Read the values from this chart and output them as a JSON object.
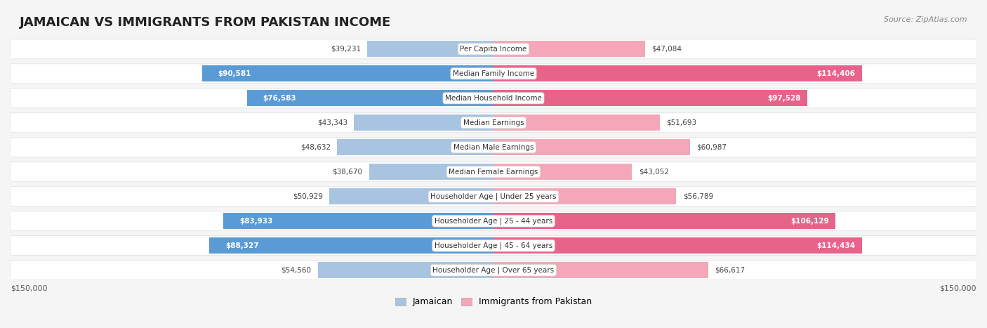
{
  "title": "JAMAICAN VS IMMIGRANTS FROM PAKISTAN INCOME",
  "source": "Source: ZipAtlas.com",
  "categories": [
    "Per Capita Income",
    "Median Family Income",
    "Median Household Income",
    "Median Earnings",
    "Median Male Earnings",
    "Median Female Earnings",
    "Householder Age | Under 25 years",
    "Householder Age | 25 - 44 years",
    "Householder Age | 45 - 64 years",
    "Householder Age | Over 65 years"
  ],
  "jamaican": [
    39231,
    90581,
    76583,
    43343,
    48632,
    38670,
    50929,
    83933,
    88327,
    54560
  ],
  "pakistan": [
    47084,
    114406,
    97528,
    51693,
    60987,
    43052,
    56789,
    106129,
    114434,
    66617
  ],
  "jamaican_labels": [
    "$39,231",
    "$90,581",
    "$76,583",
    "$43,343",
    "$48,632",
    "$38,670",
    "$50,929",
    "$83,933",
    "$88,327",
    "$54,560"
  ],
  "pakistan_labels": [
    "$47,084",
    "$114,406",
    "$97,528",
    "$51,693",
    "$60,987",
    "$43,052",
    "$56,789",
    "$106,129",
    "$114,434",
    "$66,617"
  ],
  "jamaican_high": [
    false,
    true,
    true,
    false,
    false,
    false,
    false,
    true,
    true,
    false
  ],
  "pakistan_high": [
    false,
    true,
    true,
    false,
    false,
    false,
    false,
    true,
    true,
    false
  ],
  "max_value": 150000,
  "color_jamaican_light": "#a8c4e0",
  "color_jamaican_dark": "#5b9bd5",
  "color_pakistan_light": "#f4a7b9",
  "color_pakistan_dark": "#e8638a",
  "bg_color": "#f5f5f5",
  "row_bg": "#ffffff",
  "label_bg": "#ffffff"
}
